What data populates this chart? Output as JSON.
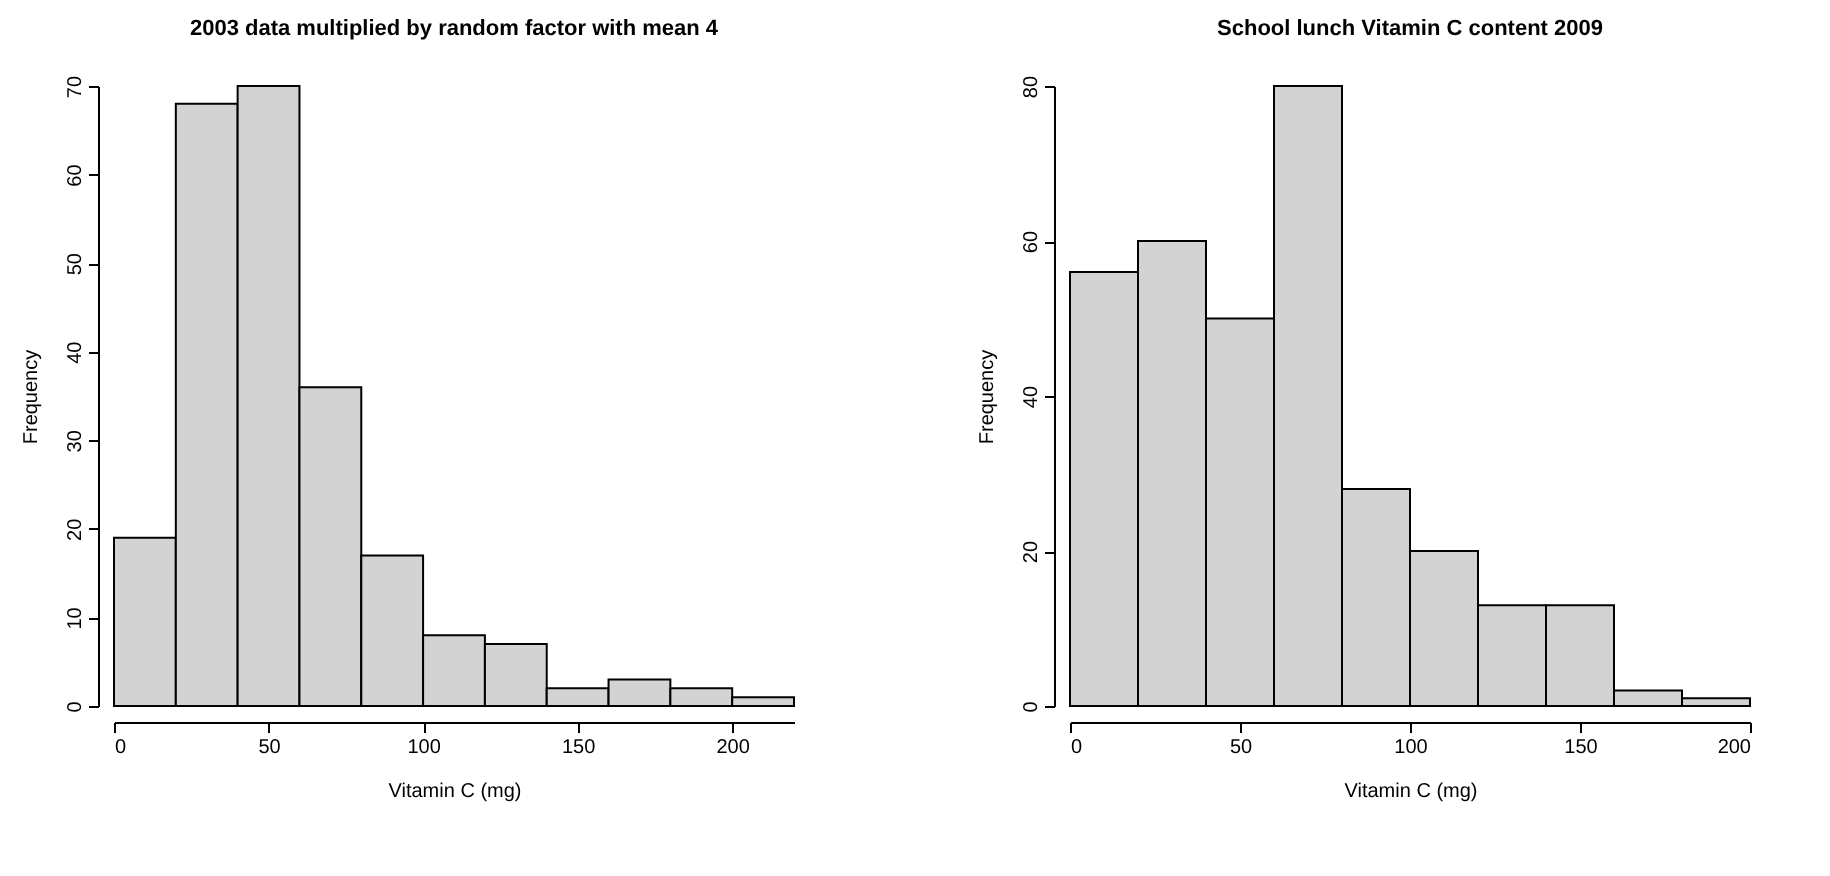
{
  "chart_data": [
    {
      "type": "histogram",
      "title": "2003 data multiplied by random factor with mean 4",
      "xlabel": "Vitamin C (mg)",
      "ylabel": "Frequency",
      "bins": [
        0,
        20,
        40,
        60,
        80,
        100,
        120,
        140,
        160,
        180,
        200,
        220
      ],
      "values": [
        19,
        68,
        70,
        36,
        17,
        8,
        7,
        2,
        3,
        2,
        1
      ],
      "color": "#d3d3d3",
      "xlim": [
        0,
        220
      ],
      "ylim": [
        0,
        70
      ],
      "xticks": [
        0,
        50,
        100,
        150,
        200
      ],
      "yticks": [
        0,
        10,
        20,
        30,
        40,
        50,
        60,
        70
      ],
      "grid": false
    },
    {
      "type": "histogram",
      "title": "School lunch Vitamin C content 2009",
      "xlabel": "Vitamin C (mg)",
      "ylabel": "Frequency",
      "bins": [
        0,
        20,
        40,
        60,
        80,
        100,
        120,
        140,
        160,
        180,
        200
      ],
      "values": [
        56,
        60,
        50,
        80,
        28,
        20,
        13,
        13,
        2,
        1
      ],
      "color": "#d3d3d3",
      "xlim": [
        0,
        200
      ],
      "ylim": [
        0,
        80
      ],
      "xticks": [
        0,
        50,
        100,
        150,
        200
      ],
      "yticks": [
        0,
        20,
        40,
        60,
        80
      ],
      "grid": false
    }
  ]
}
